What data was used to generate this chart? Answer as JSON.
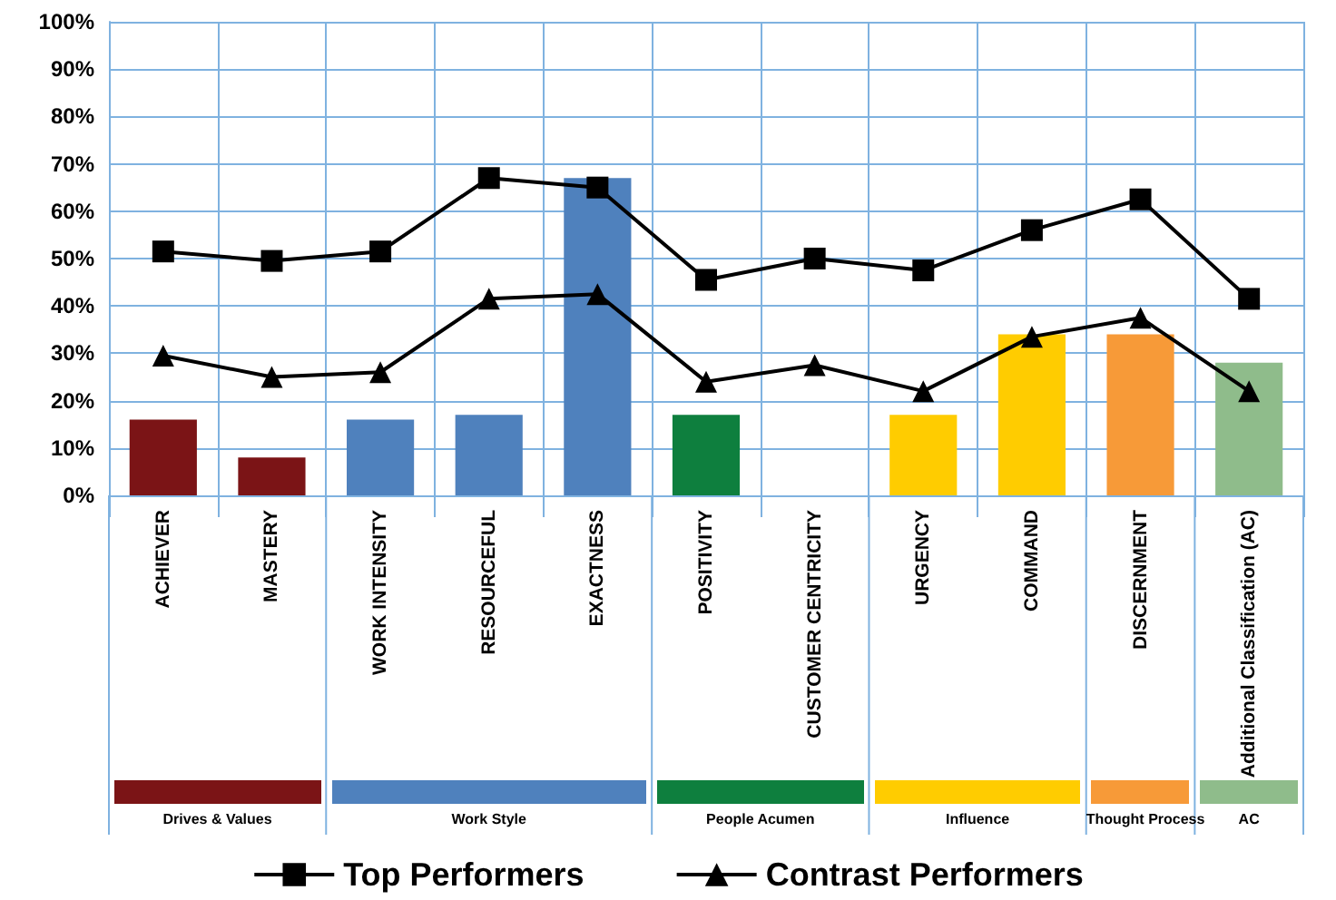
{
  "chart_data": {
    "type": "bar",
    "categories": [
      "ACHIEVER",
      "MASTERY",
      "WORK INTENSITY",
      "RESOURCEFUL",
      "EXACTNESS",
      "POSITIVITY",
      "CUSTOMER CENTRICITY",
      "URGENCY",
      "COMMAND",
      "DISCERNMENT",
      "Additional Classification (AC)"
    ],
    "series": [
      {
        "colors": [
          "#7b1416",
          "#7b1416",
          "#4f81bd",
          "#4f81bd",
          "#4f81bd",
          "#0e7f3e",
          "#0e7f3e",
          "#ffcc00",
          "#ffcc00",
          "#f79a38",
          "#8fbc8b"
        ],
        "values": [
          16,
          8,
          16,
          17,
          67,
          17,
          null,
          17,
          34,
          34,
          28
        ]
      },
      {
        "type": "line",
        "name": "Top Performers",
        "color": "#000000",
        "marker": "square",
        "values": [
          51.5,
          49.5,
          51.5,
          67,
          65,
          45.5,
          50,
          47.5,
          56,
          62.5,
          41.5
        ]
      },
      {
        "type": "line",
        "name": "Contrast Performers",
        "color": "#000000",
        "marker": "triangle",
        "values": [
          29.5,
          25,
          26,
          41.5,
          42.5,
          24,
          27.5,
          22,
          33.5,
          37.5,
          22
        ]
      }
    ],
    "ylim": [
      0,
      100
    ],
    "yticks": [
      {
        "value": 0,
        "label": "0%"
      },
      {
        "value": 10,
        "label": "10%"
      },
      {
        "value": 20,
        "label": "20%"
      },
      {
        "value": 30,
        "label": "30%"
      },
      {
        "value": 40,
        "label": "40%"
      },
      {
        "value": 50,
        "label": "50%"
      },
      {
        "value": 60,
        "label": "60%"
      },
      {
        "value": 70,
        "label": "70%"
      },
      {
        "value": 80,
        "label": "80%"
      },
      {
        "value": 90,
        "label": "90%"
      },
      {
        "value": 100,
        "label": "100%"
      }
    ],
    "grid": true,
    "legend": "bottom",
    "annotations": [
      "Drives & Values",
      "Work Style",
      "People Acumen",
      "Influence",
      "Thought Process",
      "AC"
    ]
  }
}
